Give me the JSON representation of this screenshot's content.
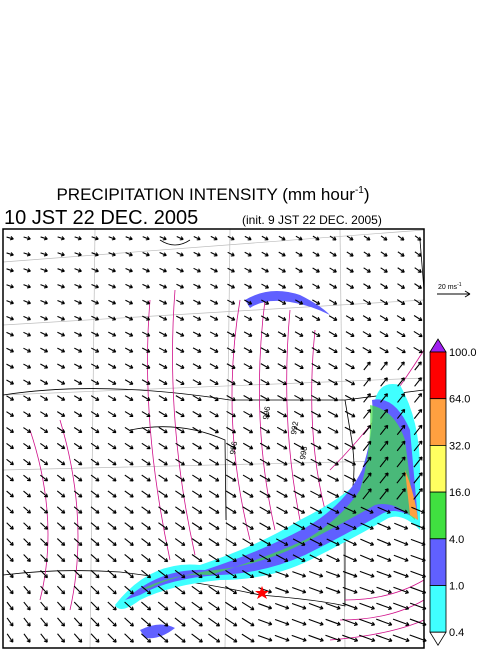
{
  "header": {
    "title": "PRECIPITATION INTENSITY (mm hour",
    "title_exponent": "-1",
    "title_close": ")",
    "valid_time": "10 JST 22 DEC. 2005",
    "init_time": "(init. 9 JST 22 DEC. 2005)"
  },
  "reference_vector": {
    "label": "20 ms",
    "exponent": "-1"
  },
  "map": {
    "contour_labels": [
      "996",
      "996",
      "992",
      "996"
    ]
  },
  "colorbar": {
    "levels": [
      {
        "value": 100,
        "label": "100.0"
      },
      {
        "value": 64,
        "label": "64.0"
      },
      {
        "value": 32,
        "label": "32.0"
      },
      {
        "value": 16,
        "label": "16.0"
      },
      {
        "value": 4,
        "label": "4.0"
      },
      {
        "value": 1,
        "label": "1.0"
      },
      {
        "value": 0.4,
        "label": "0.4"
      }
    ],
    "over_color": "#a020f0",
    "colors": [
      "#ff0000",
      "#ffa040",
      "#ffff60",
      "#40e040",
      "#6060ff",
      "#40ffff"
    ],
    "under_color": "#ffffff"
  }
}
